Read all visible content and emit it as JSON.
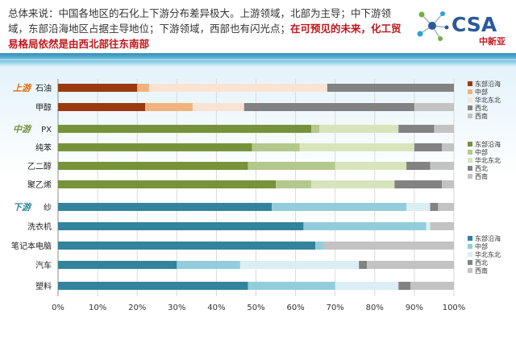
{
  "intro": {
    "text1": "总体来说：中国各地区的石化上下游分布差异极大。上游领域，北部为主导；中下游领域，东部沿海地区占据主导地位；下游领域，西部也有闪光点；",
    "highlight": "在可预见的未来，化工贸易格局依然是由西北部往东南部"
  },
  "logo": {
    "brand": "CSA",
    "sub": "中新亚"
  },
  "colors": {
    "upstream": [
      "#9a3a0e",
      "#f2b27c",
      "#fbe3d3",
      "#828282",
      "#c3c3c3"
    ],
    "midstream": [
      "#76933c",
      "#b3c88a",
      "#d8e4bc",
      "#828282",
      "#c3c3c3"
    ],
    "downstream": [
      "#31849b",
      "#92cddc",
      "#daeef3",
      "#828282",
      "#c3c3c3"
    ],
    "group_label": [
      "#e46c0a",
      "#76933c",
      "#31849b"
    ]
  },
  "chart_data": {
    "type": "bar",
    "orientation": "horizontal",
    "stacked": "percent",
    "xlim": [
      0,
      100
    ],
    "xticks": [
      "0%",
      "10%",
      "20%",
      "30%",
      "40%",
      "50%",
      "60%",
      "70%",
      "80%",
      "90%",
      "100%"
    ],
    "grid": true,
    "groups": [
      {
        "label": "上游",
        "series_names": [
          "东部沿海",
          "中部",
          "华北东北",
          "西北",
          "西南"
        ],
        "legend_position": "right",
        "categories": [
          "石油",
          "甲醇"
        ],
        "values": [
          [
            20,
            3,
            45,
            32,
            0
          ],
          [
            22,
            12,
            13,
            43,
            10
          ]
        ]
      },
      {
        "label": "中游",
        "series_names": [
          "东部沿海",
          "中部",
          "华北东北",
          "西北",
          "西南"
        ],
        "legend_position": "right",
        "categories": [
          "PX",
          "纯苯",
          "乙二醇",
          "聚乙烯"
        ],
        "values": [
          [
            64,
            2,
            20,
            9,
            5
          ],
          [
            49,
            12,
            29,
            7,
            3
          ],
          [
            48,
            22,
            18,
            6,
            6
          ],
          [
            55,
            9,
            21,
            12,
            3
          ]
        ]
      },
      {
        "label": "下游",
        "series_names": [
          "东部沿海",
          "中部",
          "华北东北",
          "西北",
          "西南"
        ],
        "legend_position": "right",
        "categories": [
          "纱",
          "洗衣机",
          "笔记本电脑",
          "汽车",
          "塑料"
        ],
        "values": [
          [
            54,
            34,
            6,
            2,
            4
          ],
          [
            62,
            31,
            1,
            0,
            6
          ],
          [
            65,
            2,
            0,
            0,
            33
          ],
          [
            30,
            16,
            30,
            2,
            22
          ],
          [
            48,
            22,
            16,
            3,
            11
          ]
        ]
      }
    ]
  }
}
